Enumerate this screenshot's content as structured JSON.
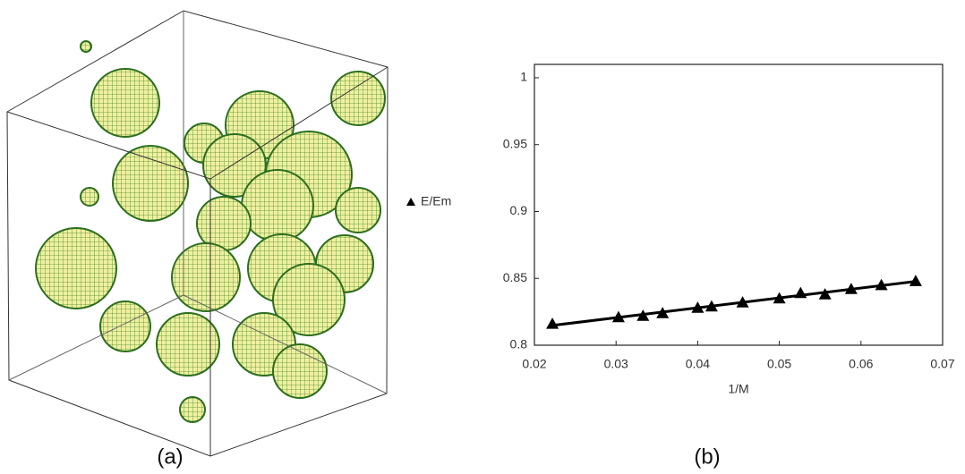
{
  "captions": [
    "(a)",
    "(b)"
  ],
  "chart_data": {
    "type": "scatter",
    "x_label": "1/M",
    "xlim": [
      0.02,
      0.07
    ],
    "xticks": [
      0.02,
      0.03,
      0.04,
      0.05,
      0.06,
      0.07
    ],
    "ylim": [
      0.8,
      1.01
    ],
    "yticks": [
      0.8,
      0.85,
      0.9,
      0.95,
      1
    ],
    "legend": "left",
    "trendline": true,
    "series": [
      {
        "name": "E/Em",
        "color": "#000000",
        "x": [
          0.0222,
          0.0303,
          0.0333,
          0.0357,
          0.04,
          0.0417,
          0.0455,
          0.05,
          0.0526,
          0.0556,
          0.0588,
          0.0625,
          0.0667
        ],
        "values": [
          0.816,
          0.821,
          0.822,
          0.824,
          0.828,
          0.829,
          0.832,
          0.835,
          0.839,
          0.838,
          0.842,
          0.845,
          0.848
        ]
      }
    ]
  }
}
